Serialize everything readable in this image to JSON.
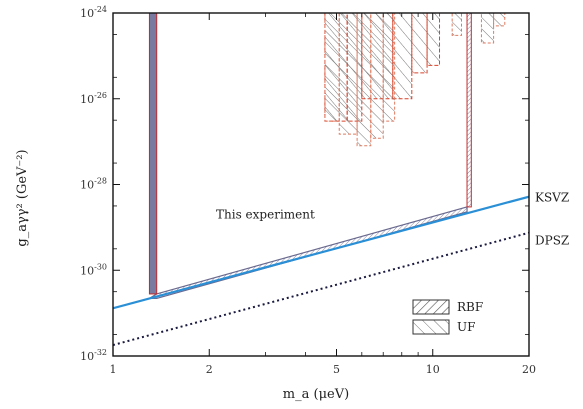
{
  "chart_data": {
    "type": "line",
    "xlabel": "m_a (μeV)",
    "ylabel": "g_aγγ² (GeV⁻²)",
    "xscale": "log",
    "yscale": "log",
    "xlim": [
      1,
      20
    ],
    "ylim": [
      1e-32,
      1e-24
    ],
    "x_ticks": [
      {
        "value": 1,
        "label": "1"
      },
      {
        "value": 2,
        "label": "2"
      },
      {
        "value": 5,
        "label": "5"
      },
      {
        "value": 10,
        "label": "10"
      },
      {
        "value": 20,
        "label": "20"
      }
    ],
    "y_ticks": [
      {
        "value": 1e-32,
        "base": "10",
        "exp": "-32"
      },
      {
        "value": 1e-30,
        "base": "10",
        "exp": "-30"
      },
      {
        "value": 1e-28,
        "base": "10",
        "exp": "-28"
      },
      {
        "value": 1e-26,
        "base": "10",
        "exp": "-26"
      },
      {
        "value": 1e-24,
        "base": "10",
        "exp": "-24"
      }
    ],
    "series": [
      {
        "name": "KSVZ",
        "style": "solid",
        "color": "#2b8fd6",
        "x": [
          1,
          20
        ],
        "y": [
          1.3e-31,
          5.2e-29
        ]
      },
      {
        "name": "DPSZ",
        "style": "dotted",
        "color": "#1a1a40",
        "x": [
          1,
          20
        ],
        "y": [
          1.8e-32,
          7.5e-30
        ]
      }
    ],
    "exclusion_regions": [
      {
        "label": "This experiment",
        "x": [
          1.3,
          1.3,
          1.37,
          12.8,
          12.8,
          13.2,
          13.2
        ],
        "y": [
          1e-24,
          2.2e-31,
          2.8e-31,
          3e-29,
          1e-24,
          1e-24,
          2.3e-29
        ]
      }
    ],
    "rbf_bands": [
      {
        "x": [
          4.6,
          5.4
        ],
        "y": 3e-27
      },
      {
        "x": [
          5.4,
          6.0
        ],
        "y": 3e-27
      },
      {
        "x": [
          6.0,
          7.5
        ],
        "y": 1e-26
      },
      {
        "x": [
          7.5,
          8.6
        ],
        "y": 1e-26
      },
      {
        "x": [
          8.6,
          9.6
        ],
        "y": 4e-26
      },
      {
        "x": [
          9.6,
          10.5
        ],
        "y": 6e-26
      }
    ],
    "uf_bands": [
      {
        "x": [
          4.6,
          5.1
        ],
        "y": 3e-27
      },
      {
        "x": [
          5.1,
          5.8
        ],
        "y": 1.5e-27
      },
      {
        "x": [
          5.8,
          6.4
        ],
        "y": 8e-28
      },
      {
        "x": [
          6.4,
          7.0
        ],
        "y": 1.2e-27
      },
      {
        "x": [
          7.0,
          7.6
        ],
        "y": 3e-27
      },
      {
        "x": [
          11.5,
          12.3
        ],
        "y": 3e-25
      },
      {
        "x": [
          14.2,
          15.5
        ],
        "y": 2e-25
      },
      {
        "x": [
          15.5,
          16.8
        ],
        "y": 5e-25
      }
    ],
    "annotations": [
      {
        "text": "This experiment",
        "x": 2.1,
        "y": 2e-29
      },
      {
        "text": "KSVZ",
        "x": 21.5,
        "y": 5e-29
      },
      {
        "text": "DPSZ",
        "x": 21.5,
        "y": 5e-30
      }
    ],
    "legend": {
      "placement": "bottom-right",
      "entries": [
        {
          "label": "RBF",
          "pattern": "dense-diagonal"
        },
        {
          "label": "UF",
          "pattern": "sparse-diagonal"
        }
      ]
    },
    "grid": false
  }
}
